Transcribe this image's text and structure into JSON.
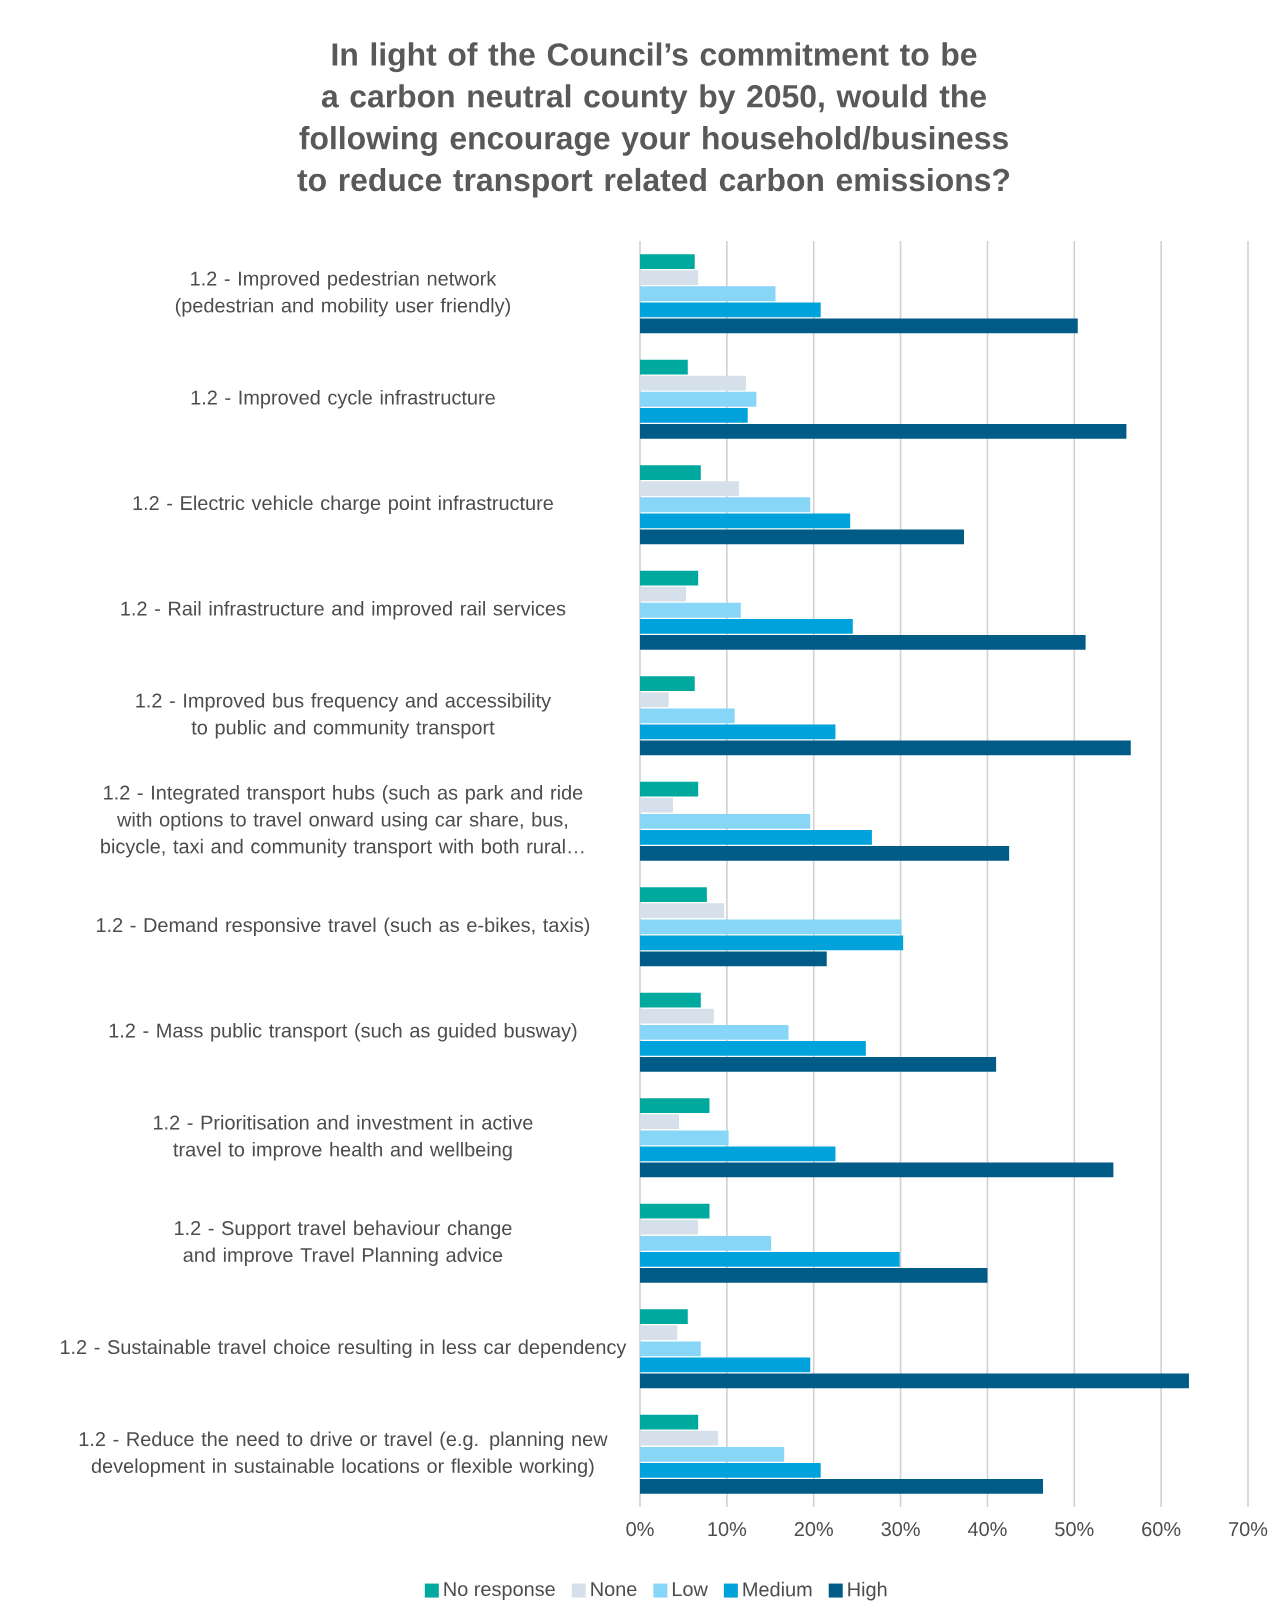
{
  "chart_data": {
    "type": "bar",
    "orientation": "horizontal",
    "title": "In light of the Council’s commitment to be a carbon neutral county by 2050, would the following encourage your household/business to reduce transport related carbon emissions?",
    "categories": [
      "1.2 - Improved pedestrian network (pedestrian and mobility user friendly)",
      "1.2 - Improved cycle infrastructure",
      "1.2 - Electric vehicle charge point infrastructure",
      "1.2 - Rail infrastructure and improved rail services",
      "1.2 - Improved bus frequency and accessibility to public and community transport",
      "1.2 - Integrated transport hubs (such as park and ride with options to travel onward using car share, bus, bicycle, taxi and community transport with both rural…",
      "1.2 - Demand responsive travel (such as e-bikes, taxis)",
      "1.2 - Mass public transport (such as guided busway)",
      "1.2 - Prioritisation and investment in active travel to improve health and wellbeing",
      "1.2 - Support travel behaviour change and improve Travel Planning advice",
      "1.2 - Sustainable travel choice resulting in less car dependency",
      "1.2 - Reduce the need to drive or travel (e.g. planning new development in sustainable locations or flexible working)"
    ],
    "series": [
      {
        "name": "No response",
        "color": "#00a99d",
        "values": [
          6.3,
          5.5,
          7.0,
          6.7,
          6.3,
          6.7,
          7.7,
          7.0,
          8.0,
          8.0,
          5.5,
          6.7
        ]
      },
      {
        "name": "None",
        "color": "#d6e0ea",
        "values": [
          6.7,
          12.2,
          11.4,
          5.3,
          3.3,
          3.8,
          9.7,
          8.5,
          4.5,
          6.7,
          4.3,
          9.0
        ]
      },
      {
        "name": "Low",
        "color": "#87d5f7",
        "values": [
          15.6,
          13.4,
          19.6,
          11.6,
          10.9,
          19.6,
          30.1,
          17.1,
          10.2,
          15.1,
          7.0,
          16.6
        ]
      },
      {
        "name": "Medium",
        "color": "#00a2db",
        "values": [
          20.8,
          12.4,
          24.2,
          24.5,
          22.5,
          26.7,
          30.3,
          26.0,
          22.5,
          29.9,
          19.6,
          20.8
        ]
      },
      {
        "name": "High",
        "color": "#005b87",
        "values": [
          50.4,
          56.0,
          37.3,
          51.3,
          56.5,
          42.5,
          21.5,
          41.0,
          54.5,
          40.0,
          63.2,
          46.4
        ]
      }
    ],
    "xlim": [
      0,
      70
    ],
    "xticks": [
      {
        "value": 0,
        "label": "0%"
      },
      {
        "value": 10,
        "label": "10%"
      },
      {
        "value": 20,
        "label": "20%"
      },
      {
        "value": 30,
        "label": "30%"
      },
      {
        "value": 40,
        "label": "40%"
      },
      {
        "value": 50,
        "label": "50%"
      },
      {
        "value": 60,
        "label": "60%"
      },
      {
        "value": 70,
        "label": "70%"
      }
    ],
    "grid": "x",
    "legend": "bottom"
  }
}
